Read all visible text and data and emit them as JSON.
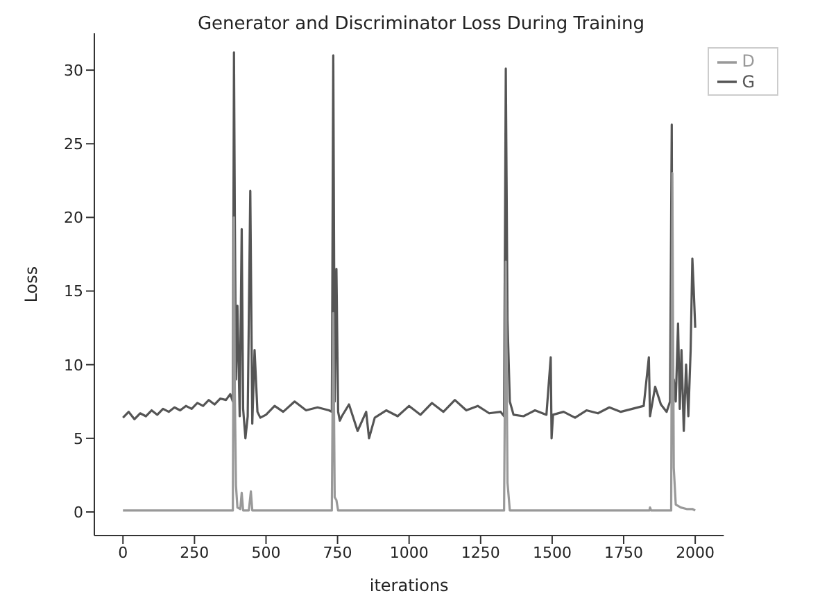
{
  "chart_data": {
    "type": "line",
    "title": "Generator and Discriminator Loss During Training",
    "xlabel": "iterations",
    "ylabel": "Loss",
    "xlim": [
      -100,
      2100
    ],
    "ylim": [
      -1.6,
      32.5
    ],
    "xticks": [
      0,
      250,
      500,
      750,
      1000,
      1250,
      1500,
      1750,
      2000
    ],
    "yticks": [
      0,
      5,
      10,
      15,
      20,
      25,
      30
    ],
    "grid": false,
    "legend": "top right",
    "marker": "none",
    "line_style": "solid",
    "series": [
      {
        "name": "G",
        "color": "#555555",
        "x": [
          0,
          20,
          40,
          60,
          80,
          100,
          120,
          140,
          160,
          180,
          200,
          220,
          240,
          260,
          280,
          300,
          320,
          340,
          360,
          375,
          384,
          388,
          391,
          395,
          400,
          408,
          415,
          420,
          428,
          436,
          445,
          452,
          460,
          470,
          480,
          500,
          530,
          560,
          600,
          640,
          680,
          720,
          730,
          735,
          740,
          746,
          752,
          758,
          765,
          790,
          820,
          850,
          860,
          880,
          920,
          960,
          1000,
          1040,
          1080,
          1120,
          1160,
          1200,
          1240,
          1280,
          1320,
          1332,
          1338,
          1344,
          1352,
          1365,
          1400,
          1440,
          1480,
          1495,
          1498,
          1503,
          1540,
          1580,
          1620,
          1660,
          1700,
          1740,
          1780,
          1820,
          1838,
          1842,
          1860,
          1880,
          1900,
          1912,
          1918,
          1921,
          1925,
          1932,
          1940,
          1946,
          1952,
          1960,
          1968,
          1976,
          1984,
          1990,
          1995,
          2000
        ],
        "values": [
          6.4,
          6.8,
          6.3,
          6.7,
          6.5,
          6.9,
          6.6,
          7.0,
          6.8,
          7.1,
          6.9,
          7.2,
          7.0,
          7.4,
          7.2,
          7.6,
          7.3,
          7.7,
          7.6,
          8.0,
          7.5,
          31.2,
          20,
          9,
          14,
          6.5,
          19.2,
          7,
          5,
          6.5,
          21.8,
          6,
          11,
          6.8,
          6.4,
          6.6,
          7.2,
          6.8,
          7.5,
          6.9,
          7.1,
          6.9,
          6.8,
          31,
          7.5,
          16.5,
          6.8,
          6.2,
          6.5,
          7.3,
          5.5,
          6.8,
          5,
          6.4,
          6.9,
          6.5,
          7.2,
          6.6,
          7.4,
          6.8,
          7.6,
          6.9,
          7.2,
          6.7,
          6.8,
          6.5,
          30.1,
          13,
          7.5,
          6.6,
          6.5,
          6.9,
          6.6,
          10.5,
          5,
          6.6,
          6.8,
          6.4,
          6.9,
          6.7,
          7.1,
          6.8,
          7.0,
          7.2,
          10.5,
          6.5,
          8.5,
          7.3,
          6.8,
          7.5,
          26.3,
          5,
          9,
          7.5,
          12.8,
          7,
          11,
          5.5,
          10,
          6.5,
          11,
          17.2,
          15,
          12.5
        ]
      },
      {
        "name": "D",
        "color": "#999999",
        "x": [
          0,
          380,
          384,
          388,
          391,
          395,
          400,
          410,
          415,
          420,
          440,
          447,
          452,
          460,
          720,
          730,
          735,
          740,
          746,
          752,
          760,
          1320,
          1332,
          1338,
          1344,
          1352,
          1840,
          1842,
          1846,
          1910,
          1916,
          1920,
          1925,
          1932,
          1950,
          1970,
          1990,
          2000
        ],
        "values": [
          0.1,
          0.1,
          0.1,
          20,
          8,
          1.8,
          0.3,
          0.2,
          1.3,
          0.1,
          0.1,
          1.4,
          0.1,
          0.1,
          0.1,
          0.1,
          13.5,
          1,
          0.8,
          0.1,
          0.1,
          0.1,
          0.1,
          17,
          2,
          0.1,
          0.1,
          0.3,
          0.1,
          0.1,
          0.1,
          23,
          3,
          0.5,
          0.3,
          0.2,
          0.2,
          0.1
        ]
      }
    ]
  }
}
